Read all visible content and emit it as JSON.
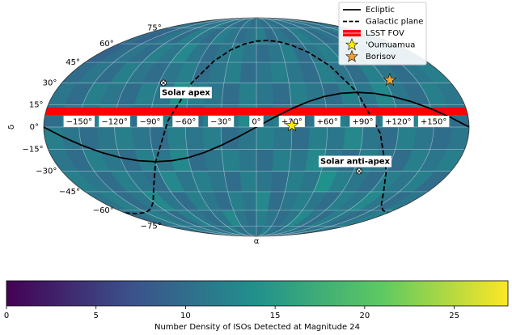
{
  "chart_data": {
    "type": "mollweide",
    "xlabel": "α",
    "ylabel": "δ",
    "grid": true,
    "legend": "upper right",
    "colormap": "viridis",
    "xticks": [
      {
        "value": -150,
        "label": "−150°"
      },
      {
        "value": -120,
        "label": "−120°"
      },
      {
        "value": -90,
        "label": "−90°"
      },
      {
        "value": -60,
        "label": "−60°"
      },
      {
        "value": -30,
        "label": "−30°"
      },
      {
        "value": 0,
        "label": "0°"
      },
      {
        "value": 30,
        "label": "+30°"
      },
      {
        "value": 60,
        "label": "+60°"
      },
      {
        "value": 90,
        "label": "+90°"
      },
      {
        "value": 120,
        "label": "+120°"
      },
      {
        "value": 150,
        "label": "+150°"
      }
    ],
    "yticks": [
      {
        "value": -75,
        "label": "−75°"
      },
      {
        "value": -60,
        "label": "−60°"
      },
      {
        "value": -45,
        "label": "−45°"
      },
      {
        "value": -30,
        "label": "−30°"
      },
      {
        "value": -15,
        "label": "−15°"
      },
      {
        "value": 0,
        "label": "0°"
      },
      {
        "value": 15,
        "label": "15°"
      },
      {
        "value": 30,
        "label": "30°"
      },
      {
        "value": 45,
        "label": "45°"
      },
      {
        "value": 60,
        "label": "60°"
      },
      {
        "value": 75,
        "label": "75°"
      }
    ],
    "heatmap": {
      "lon_edges": [
        -180,
        -165,
        -150,
        -135,
        -120,
        -105,
        -90,
        -75,
        -60,
        -45,
        -30,
        -15,
        0,
        15,
        30,
        45,
        60,
        75,
        90,
        105,
        120,
        135,
        150,
        165,
        180
      ],
      "lat_edges": [
        -90,
        -75,
        -60,
        -45,
        -30,
        -15,
        0,
        15,
        30,
        45,
        60,
        75,
        90
      ],
      "values": [
        [
          11,
          10,
          11,
          12,
          10,
          11,
          10,
          11,
          12,
          10,
          11,
          11,
          10,
          12,
          11,
          10,
          11,
          12,
          10,
          11,
          10,
          11,
          12,
          10
        ],
        [
          10,
          11,
          12,
          11,
          10,
          12,
          11,
          10,
          11,
          13,
          11,
          10,
          12,
          11,
          10,
          11,
          13,
          11,
          10,
          12,
          11,
          10,
          11,
          12
        ],
        [
          11,
          12,
          10,
          11,
          13,
          11,
          10,
          12,
          11,
          10,
          12,
          11,
          13,
          10,
          11,
          12,
          11,
          10,
          12,
          11,
          13,
          11,
          10,
          11
        ],
        [
          12,
          11,
          10,
          12,
          11,
          10,
          13,
          11,
          12,
          11,
          10,
          12,
          11,
          10,
          12,
          11,
          14,
          12,
          11,
          10,
          12,
          11,
          12,
          10
        ],
        [
          11,
          10,
          12,
          11,
          10,
          12,
          11,
          13,
          10,
          11,
          12,
          11,
          10,
          12,
          11,
          13,
          11,
          10,
          12,
          11,
          10,
          12,
          11,
          12
        ],
        [
          12,
          11,
          10,
          11,
          12,
          11,
          10,
          12,
          11,
          12,
          10,
          11,
          12,
          11,
          10,
          12,
          11,
          13,
          11,
          10,
          12,
          11,
          10,
          11
        ],
        [
          10,
          12,
          11,
          13,
          11,
          10,
          12,
          11,
          10,
          12,
          11,
          13,
          11,
          12,
          10,
          11,
          12,
          11,
          10,
          12,
          11,
          13,
          11,
          10
        ],
        [
          11,
          10,
          12,
          11,
          10,
          12,
          11,
          14,
          12,
          11,
          10,
          12,
          11,
          10,
          12,
          11,
          10,
          12,
          11,
          13,
          11,
          10,
          12,
          11
        ],
        [
          10,
          11,
          10,
          12,
          11,
          10,
          11,
          12,
          10,
          11,
          12,
          10,
          11,
          12,
          11,
          10,
          12,
          11,
          10,
          12,
          11,
          10,
          11,
          12
        ],
        [
          9,
          10,
          11,
          10,
          12,
          11,
          13,
          11,
          10,
          11,
          12,
          11,
          10,
          11,
          12,
          10,
          11,
          12,
          11,
          10,
          11,
          12,
          10,
          11
        ],
        [
          10,
          9,
          10,
          11,
          10,
          12,
          11,
          10,
          12,
          11,
          10,
          11,
          12,
          10,
          11,
          10,
          12,
          11,
          10,
          11,
          10,
          12,
          11,
          10
        ],
        [
          10,
          11,
          10,
          11,
          10,
          11,
          12,
          10,
          11,
          10,
          11,
          10,
          11,
          10,
          11,
          10,
          11,
          10,
          11,
          10,
          11,
          10,
          11,
          10
        ]
      ]
    },
    "colorbar": {
      "label": "Number Density of ISOs Detected at Magnitude 24",
      "lim": [
        0,
        28
      ],
      "ticks": [
        0,
        5,
        10,
        15,
        20,
        25
      ]
    },
    "lines": [
      {
        "name": "Ecliptic",
        "color": "#000000",
        "style": "solid",
        "x": [
          -180,
          -165,
          -150,
          -135,
          -120,
          -105,
          -90,
          -75,
          -60,
          -45,
          -30,
          -15,
          0,
          15,
          30,
          45,
          60,
          75,
          90,
          105,
          120,
          135,
          150,
          165,
          180
        ],
        "values": [
          0,
          -6.4,
          -12.2,
          -17.0,
          -20.6,
          -22.7,
          -23.4,
          -22.7,
          -20.6,
          -17.0,
          -12.2,
          -6.4,
          0,
          6.4,
          12.2,
          17.0,
          20.6,
          22.7,
          23.4,
          22.7,
          20.6,
          17.0,
          12.2,
          6.4,
          0
        ]
      },
      {
        "name": "Galactic plane",
        "color": "#000000",
        "style": "dashed",
        "x": [
          -180,
          -165,
          -150,
          -135,
          -120,
          -105,
          -90,
          -75,
          -60,
          -45,
          -30,
          -15,
          0,
          15,
          30,
          45,
          60,
          75,
          90,
          105,
          120,
          135,
          150,
          165,
          180
        ],
        "values": [
          -62.3,
          -62.9,
          -61.8,
          -58.8,
          -53.0,
          -42.4,
          -23.5,
          4.2,
          29.9,
          46.1,
          55.1,
          59.9,
          62.3,
          62.9,
          61.8,
          58.8,
          53.0,
          42.4,
          23.5,
          -4.2,
          -29.9,
          -46.1,
          -55.1,
          -59.9,
          -62.3
        ]
      }
    ],
    "lsst_fov": {
      "name": "LSST FOV",
      "color": "#ff0000",
      "dec": [
        8,
        13
      ]
    },
    "points": [
      {
        "name": "'Oumuamua",
        "color": "#ffee00",
        "x": 30,
        "y": 1
      },
      {
        "name": "Borisov",
        "color": "#f0a030",
        "x": 125,
        "y": 32
      }
    ],
    "annotations": [
      {
        "text": "Solar apex",
        "x": -86,
        "y": 30
      },
      {
        "text": "Solar anti-apex",
        "x": 95,
        "y": -30
      }
    ]
  }
}
